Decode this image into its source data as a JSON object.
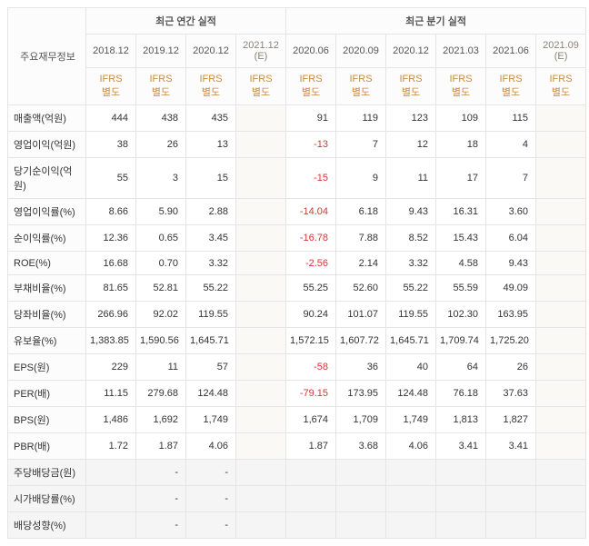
{
  "header": {
    "metric_label": "주요재무정보",
    "annual_label": "최근 연간 실적",
    "quarterly_label": "최근 분기 실적",
    "periods": [
      {
        "label": "2018.12",
        "est": false
      },
      {
        "label": "2019.12",
        "est": false
      },
      {
        "label": "2020.12",
        "est": false
      },
      {
        "label": "2021.12 (E)",
        "est": true
      },
      {
        "label": "2020.06",
        "est": false
      },
      {
        "label": "2020.09",
        "est": false
      },
      {
        "label": "2020.12",
        "est": false
      },
      {
        "label": "2021.03",
        "est": false
      },
      {
        "label": "2021.06",
        "est": false
      },
      {
        "label": "2021.09 (E)",
        "est": true
      }
    ],
    "ifrs_labels": [
      "IFRS 별도",
      "IFRS 별도",
      "IFRS 별도",
      "IFRS 별도",
      "IFRS 별도",
      "IFRS 별도",
      "IFRS 별도",
      "IFRS 별도",
      "IFRS 별도",
      "IFRS 별도"
    ]
  },
  "rows": [
    {
      "label": "매출액(억원)",
      "gray": false,
      "cells": [
        {
          "v": "444"
        },
        {
          "v": "438"
        },
        {
          "v": "435"
        },
        {
          "v": ""
        },
        {
          "v": "91"
        },
        {
          "v": "119"
        },
        {
          "v": "123"
        },
        {
          "v": "109"
        },
        {
          "v": "115"
        },
        {
          "v": ""
        }
      ]
    },
    {
      "label": "영업이익(억원)",
      "gray": false,
      "cells": [
        {
          "v": "38"
        },
        {
          "v": "26"
        },
        {
          "v": "13"
        },
        {
          "v": ""
        },
        {
          "v": "-13",
          "neg": true
        },
        {
          "v": "7"
        },
        {
          "v": "12"
        },
        {
          "v": "18"
        },
        {
          "v": "4"
        },
        {
          "v": ""
        }
      ]
    },
    {
      "label": "당기순이익(억원)",
      "gray": false,
      "cells": [
        {
          "v": "55"
        },
        {
          "v": "3"
        },
        {
          "v": "15"
        },
        {
          "v": ""
        },
        {
          "v": "-15",
          "neg": true
        },
        {
          "v": "9"
        },
        {
          "v": "11"
        },
        {
          "v": "17"
        },
        {
          "v": "7"
        },
        {
          "v": ""
        }
      ]
    },
    {
      "label": "영업이익률(%)",
      "gray": false,
      "cells": [
        {
          "v": "8.66"
        },
        {
          "v": "5.90"
        },
        {
          "v": "2.88"
        },
        {
          "v": ""
        },
        {
          "v": "-14.04",
          "neg": true
        },
        {
          "v": "6.18"
        },
        {
          "v": "9.43"
        },
        {
          "v": "16.31"
        },
        {
          "v": "3.60"
        },
        {
          "v": ""
        }
      ]
    },
    {
      "label": "순이익률(%)",
      "gray": false,
      "cells": [
        {
          "v": "12.36"
        },
        {
          "v": "0.65"
        },
        {
          "v": "3.45"
        },
        {
          "v": ""
        },
        {
          "v": "-16.78",
          "neg": true
        },
        {
          "v": "7.88"
        },
        {
          "v": "8.52"
        },
        {
          "v": "15.43"
        },
        {
          "v": "6.04"
        },
        {
          "v": ""
        }
      ]
    },
    {
      "label": "ROE(%)",
      "gray": false,
      "cells": [
        {
          "v": "16.68"
        },
        {
          "v": "0.70"
        },
        {
          "v": "3.32"
        },
        {
          "v": ""
        },
        {
          "v": "-2.56",
          "neg": true
        },
        {
          "v": "2.14"
        },
        {
          "v": "3.32"
        },
        {
          "v": "4.58"
        },
        {
          "v": "9.43"
        },
        {
          "v": ""
        }
      ]
    },
    {
      "label": "부채비율(%)",
      "gray": false,
      "cells": [
        {
          "v": "81.65"
        },
        {
          "v": "52.81"
        },
        {
          "v": "55.22"
        },
        {
          "v": ""
        },
        {
          "v": "55.25"
        },
        {
          "v": "52.60"
        },
        {
          "v": "55.22"
        },
        {
          "v": "55.59"
        },
        {
          "v": "49.09"
        },
        {
          "v": ""
        }
      ]
    },
    {
      "label": "당좌비율(%)",
      "gray": false,
      "cells": [
        {
          "v": "266.96"
        },
        {
          "v": "92.02"
        },
        {
          "v": "119.55"
        },
        {
          "v": ""
        },
        {
          "v": "90.24"
        },
        {
          "v": "101.07"
        },
        {
          "v": "119.55"
        },
        {
          "v": "102.30"
        },
        {
          "v": "163.95"
        },
        {
          "v": ""
        }
      ]
    },
    {
      "label": "유보율(%)",
      "gray": false,
      "cells": [
        {
          "v": "1,383.85"
        },
        {
          "v": "1,590.56"
        },
        {
          "v": "1,645.71"
        },
        {
          "v": ""
        },
        {
          "v": "1,572.15"
        },
        {
          "v": "1,607.72"
        },
        {
          "v": "1,645.71"
        },
        {
          "v": "1,709.74"
        },
        {
          "v": "1,725.20"
        },
        {
          "v": ""
        }
      ]
    },
    {
      "label": "EPS(원)",
      "gray": false,
      "cells": [
        {
          "v": "229"
        },
        {
          "v": "11"
        },
        {
          "v": "57"
        },
        {
          "v": ""
        },
        {
          "v": "-58",
          "neg": true
        },
        {
          "v": "36"
        },
        {
          "v": "40"
        },
        {
          "v": "64"
        },
        {
          "v": "26"
        },
        {
          "v": ""
        }
      ]
    },
    {
      "label": "PER(배)",
      "gray": false,
      "cells": [
        {
          "v": "11.15"
        },
        {
          "v": "279.68"
        },
        {
          "v": "124.48"
        },
        {
          "v": ""
        },
        {
          "v": "-79.15",
          "neg": true
        },
        {
          "v": "173.95"
        },
        {
          "v": "124.48"
        },
        {
          "v": "76.18"
        },
        {
          "v": "37.63"
        },
        {
          "v": ""
        }
      ]
    },
    {
      "label": "BPS(원)",
      "gray": false,
      "cells": [
        {
          "v": "1,486"
        },
        {
          "v": "1,692"
        },
        {
          "v": "1,749"
        },
        {
          "v": ""
        },
        {
          "v": "1,674"
        },
        {
          "v": "1,709"
        },
        {
          "v": "1,749"
        },
        {
          "v": "1,813"
        },
        {
          "v": "1,827"
        },
        {
          "v": ""
        }
      ]
    },
    {
      "label": "PBR(배)",
      "gray": false,
      "cells": [
        {
          "v": "1.72"
        },
        {
          "v": "1.87"
        },
        {
          "v": "4.06"
        },
        {
          "v": ""
        },
        {
          "v": "1.87"
        },
        {
          "v": "3.68"
        },
        {
          "v": "4.06"
        },
        {
          "v": "3.41"
        },
        {
          "v": "3.41"
        },
        {
          "v": ""
        }
      ]
    },
    {
      "label": "주당배당금(원)",
      "gray": true,
      "cells": [
        {
          "v": ""
        },
        {
          "v": "-"
        },
        {
          "v": "-"
        },
        {
          "v": ""
        },
        {
          "v": ""
        },
        {
          "v": ""
        },
        {
          "v": ""
        },
        {
          "v": ""
        },
        {
          "v": ""
        },
        {
          "v": ""
        }
      ]
    },
    {
      "label": "시가배당률(%)",
      "gray": true,
      "cells": [
        {
          "v": ""
        },
        {
          "v": "-"
        },
        {
          "v": "-"
        },
        {
          "v": ""
        },
        {
          "v": ""
        },
        {
          "v": ""
        },
        {
          "v": ""
        },
        {
          "v": ""
        },
        {
          "v": ""
        },
        {
          "v": ""
        }
      ]
    },
    {
      "label": "배당성향(%)",
      "gray": true,
      "cells": [
        {
          "v": ""
        },
        {
          "v": "-"
        },
        {
          "v": "-"
        },
        {
          "v": ""
        },
        {
          "v": ""
        },
        {
          "v": ""
        },
        {
          "v": ""
        },
        {
          "v": ""
        },
        {
          "v": ""
        },
        {
          "v": ""
        }
      ]
    }
  ],
  "est_cols": [
    3,
    9
  ]
}
